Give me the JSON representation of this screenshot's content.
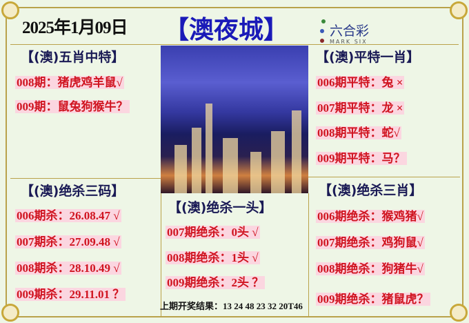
{
  "title": {
    "date": "2025年1月09日",
    "brand": "【澳夜城】"
  },
  "logo": {
    "cn": "六合彩",
    "en": "MARK SIX"
  },
  "left_top": {
    "header": "【(澳)五肖中特】",
    "rows": [
      "008期：猪虎鸡羊鼠√",
      "009期：鼠兔狗猴牛？"
    ]
  },
  "left_bottom": {
    "header": "【(澳)绝杀三码】",
    "rows": [
      "006期杀：26.08.47 √",
      "007期杀：27.09.48 √",
      "008期杀：28.10.49 √",
      "009期杀：29.11.01 ？"
    ]
  },
  "center": {
    "header": "【(澳)绝杀一头】",
    "rows": [
      "007期绝杀：0头 √",
      "008期绝杀：1头 √",
      "009期绝杀：2头 ？"
    ],
    "footer": "上期开奖结果：13 24 48 23 32 20T46"
  },
  "right_top": {
    "header": "【(澳)平特一肖】",
    "rows": [
      "006期平特：兔 ×",
      "007期平特：龙 ×",
      "008期平特：蛇√",
      "009期平特：马？"
    ]
  },
  "right_bottom": {
    "header": "【(澳)绝杀三肖】",
    "rows": [
      "006期绝杀：猴鸡猪√",
      "007期绝杀：鸡狗鼠√",
      "008期绝杀：狗猪牛√",
      "009期绝杀：猪鼠虎？"
    ]
  },
  "colors": {
    "red": "#d01420",
    "blue": "#1a1ab8",
    "highlight": "#fbd6e0"
  }
}
